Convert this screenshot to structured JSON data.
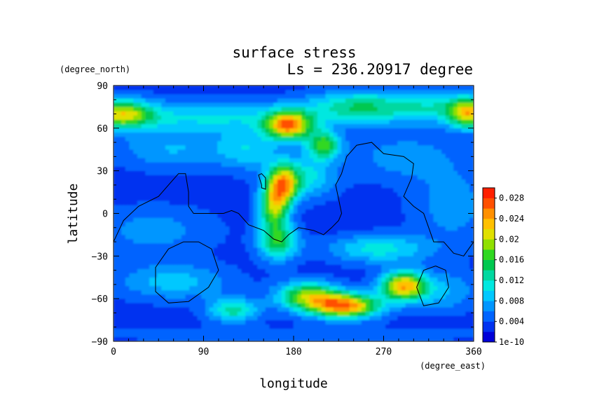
{
  "chart_data": {
    "type": "heatmap",
    "title": "surface stress",
    "subtitle": "Ls = 236.20917 degree",
    "xlabel": "longitude",
    "ylabel": "latitude",
    "x_units": "(degree_east)",
    "y_units": "(degree_north)",
    "xlim": [
      0,
      360
    ],
    "ylim": [
      -90,
      90
    ],
    "x_ticks": [
      0,
      90,
      180,
      270,
      360
    ],
    "y_ticks": [
      90,
      60,
      30,
      0,
      -30,
      -60,
      -90
    ],
    "x_tick_labels": [
      "0",
      "90",
      "180",
      "270",
      "360"
    ],
    "y_tick_labels": [
      "90",
      "60",
      "30",
      "0",
      "−30",
      "−60",
      "−90"
    ],
    "grid": false,
    "colorbar": {
      "placement": "right",
      "levels": [
        0,
        0.002,
        0.004,
        0.006,
        0.008,
        0.01,
        0.012,
        0.014,
        0.016,
        0.018,
        0.02,
        0.022,
        0.024,
        0.026,
        0.028,
        0.03
      ],
      "colors": [
        "#0000d8",
        "#0032f0",
        "#0064ff",
        "#0096ff",
        "#00c8ff",
        "#00e8e0",
        "#00d8a0",
        "#00c850",
        "#30d820",
        "#90e000",
        "#e0e000",
        "#ffc000",
        "#ff9000",
        "#ff5000",
        "#ff2000"
      ],
      "tick_labels": [
        "1e-10",
        "0.004",
        "0.008",
        "0.012",
        "0.016",
        "0.02",
        "0.024",
        "0.028"
      ],
      "tick_values": [
        0,
        0.004,
        0.008,
        0.012,
        0.016,
        0.02,
        0.024,
        0.028
      ]
    },
    "field": {
      "background": 0.003,
      "blobs": [
        {
          "lon": 8,
          "lat": 70,
          "slon": 22,
          "slat": 7,
          "v": 0.016
        },
        {
          "lon": 355,
          "lat": 70,
          "slon": 14,
          "slat": 7,
          "v": 0.016
        },
        {
          "lon": 95,
          "lat": 68,
          "slon": 70,
          "slat": 8,
          "v": 0.007
        },
        {
          "lon": 175,
          "lat": 62,
          "slon": 16,
          "slat": 7,
          "v": 0.021
        },
        {
          "lon": 240,
          "lat": 75,
          "slon": 35,
          "slat": 8,
          "v": 0.009
        },
        {
          "lon": 320,
          "lat": 75,
          "slon": 45,
          "slat": 8,
          "v": 0.008
        },
        {
          "lon": 210,
          "lat": 48,
          "slon": 12,
          "slat": 7,
          "v": 0.014
        },
        {
          "lon": 60,
          "lat": 45,
          "slon": 40,
          "slat": 10,
          "v": 0.005
        },
        {
          "lon": 135,
          "lat": 45,
          "slon": 22,
          "slat": 10,
          "v": 0.006
        },
        {
          "lon": 290,
          "lat": 40,
          "slon": 40,
          "slat": 12,
          "v": 0.004
        },
        {
          "lon": 170,
          "lat": 20,
          "slon": 10,
          "slat": 10,
          "v": 0.016
        },
        {
          "lon": 160,
          "lat": 5,
          "slon": 10,
          "slat": 12,
          "v": 0.015
        },
        {
          "lon": 165,
          "lat": -20,
          "slon": 14,
          "slat": 9,
          "v": 0.012
        },
        {
          "lon": 190,
          "lat": 25,
          "slon": 22,
          "slat": 10,
          "v": 0.008
        },
        {
          "lon": 265,
          "lat": -25,
          "slon": 35,
          "slat": 7,
          "v": 0.008
        },
        {
          "lon": 40,
          "lat": -12,
          "slon": 45,
          "slat": 12,
          "v": 0.004
        },
        {
          "lon": 340,
          "lat": 5,
          "slon": 30,
          "slat": 20,
          "v": 0.004
        },
        {
          "lon": 60,
          "lat": -48,
          "slon": 40,
          "slat": 9,
          "v": 0.006
        },
        {
          "lon": 195,
          "lat": -58,
          "slon": 22,
          "slat": 7,
          "v": 0.015
        },
        {
          "lon": 232,
          "lat": -65,
          "slon": 24,
          "slat": 6,
          "v": 0.022
        },
        {
          "lon": 120,
          "lat": -68,
          "slon": 18,
          "slat": 6,
          "v": 0.01
        },
        {
          "lon": 290,
          "lat": -51,
          "slon": 16,
          "slat": 7,
          "v": 0.02
        },
        {
          "lon": 330,
          "lat": -55,
          "slon": 25,
          "slat": 10,
          "v": 0.005
        },
        {
          "lon": 180,
          "lat": -85,
          "slon": 200,
          "slat": 4,
          "v": 0.002
        }
      ]
    },
    "contours": [
      {
        "points": [
          [
            0,
            -20
          ],
          [
            10,
            -5
          ],
          [
            25,
            5
          ],
          [
            45,
            12
          ],
          [
            55,
            20
          ],
          [
            65,
            28
          ],
          [
            72,
            28
          ],
          [
            75,
            15
          ],
          [
            75,
            5
          ],
          [
            80,
            0
          ],
          [
            100,
            0
          ],
          [
            110,
            0
          ],
          [
            118,
            2
          ],
          [
            125,
            0
          ],
          [
            135,
            -8
          ],
          [
            150,
            -12
          ],
          [
            160,
            -18
          ],
          [
            168,
            -20
          ],
          [
            175,
            -15
          ],
          [
            185,
            -10
          ],
          [
            200,
            -12
          ],
          [
            210,
            -15
          ],
          [
            218,
            -10
          ],
          [
            225,
            -5
          ],
          [
            228,
            0
          ],
          [
            225,
            10
          ],
          [
            222,
            20
          ],
          [
            228,
            28
          ],
          [
            233,
            40
          ],
          [
            243,
            48
          ],
          [
            258,
            50
          ],
          [
            270,
            42
          ],
          [
            290,
            40
          ],
          [
            300,
            35
          ],
          [
            298,
            25
          ],
          [
            290,
            12
          ],
          [
            300,
            5
          ],
          [
            310,
            0
          ],
          [
            315,
            -10
          ],
          [
            320,
            -20
          ],
          [
            330,
            -20
          ],
          [
            340,
            -28
          ],
          [
            350,
            -30
          ],
          [
            360,
            -20
          ]
        ]
      },
      {
        "points": [
          [
            148,
            20
          ],
          [
            145,
            27
          ],
          [
            148,
            28
          ],
          [
            152,
            25
          ],
          [
            152,
            17
          ],
          [
            148,
            18
          ],
          [
            148,
            20
          ]
        ]
      },
      {
        "points": [
          [
            70,
            -20
          ],
          [
            55,
            -25
          ],
          [
            42,
            -38
          ],
          [
            42,
            -55
          ],
          [
            55,
            -63
          ],
          [
            75,
            -62
          ],
          [
            95,
            -52
          ],
          [
            105,
            -40
          ],
          [
            98,
            -25
          ],
          [
            85,
            -20
          ],
          [
            70,
            -20
          ]
        ]
      },
      {
        "points": [
          [
            322,
            -37
          ],
          [
            310,
            -40
          ],
          [
            303,
            -52
          ],
          [
            310,
            -65
          ],
          [
            325,
            -63
          ],
          [
            335,
            -52
          ],
          [
            332,
            -40
          ],
          [
            322,
            -37
          ]
        ]
      }
    ]
  }
}
